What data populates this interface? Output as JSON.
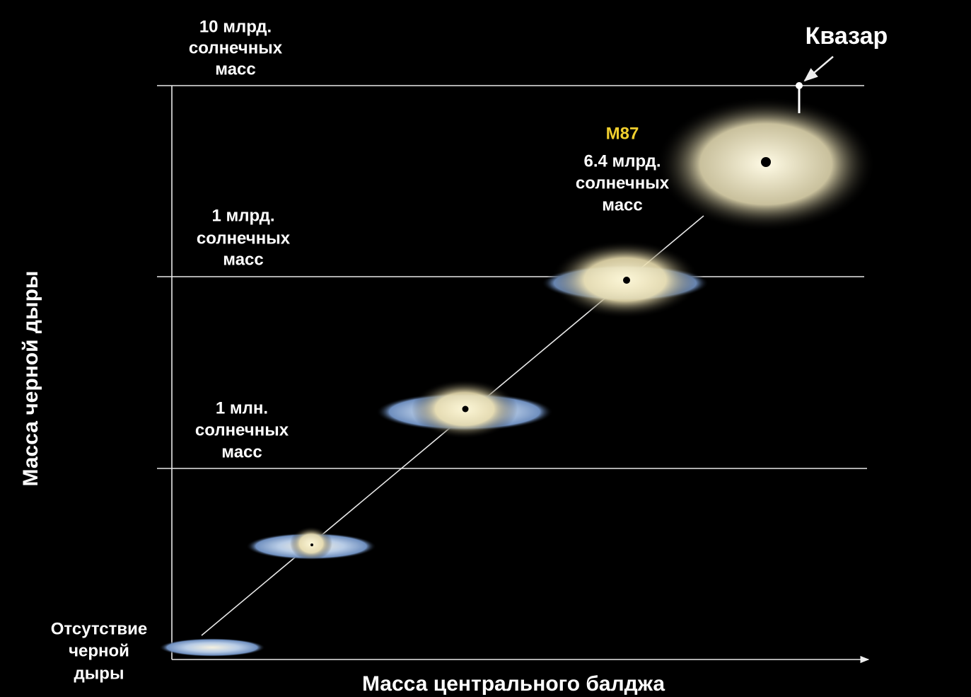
{
  "levels": [
    {
      "lines": [
        "10 млрд.",
        "солнечных",
        "масс"
      ]
    },
    {
      "lines": [
        "1 млрд.",
        "солнечных",
        "масс"
      ]
    },
    {
      "lines": [
        "1 млн.",
        "солнечных",
        "масс"
      ]
    },
    {
      "lines": [
        "Отсутствие",
        "черной",
        "дыры"
      ]
    }
  ],
  "m87": {
    "name": "M87",
    "lines": [
      "6.4 млрд.",
      "солнечных",
      "масс"
    ]
  },
  "quasar": "Квазар",
  "y_axis_label": "Масса черной дыры",
  "x_axis_label": "Масса центрального балджа"
}
